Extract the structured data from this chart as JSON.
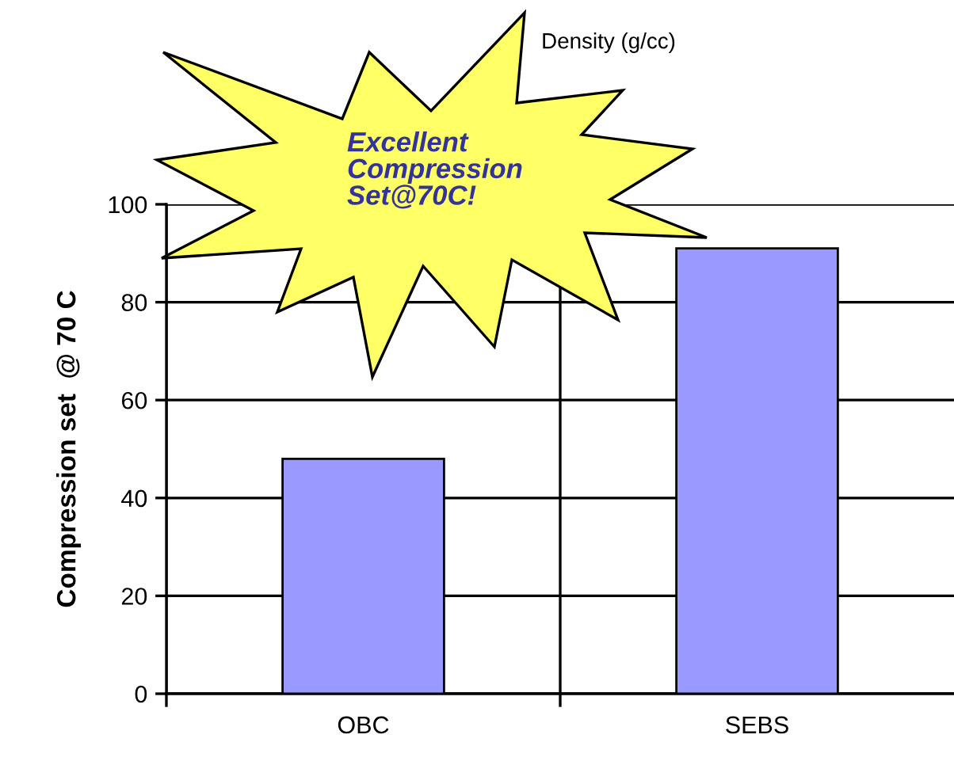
{
  "chart_data": {
    "type": "bar",
    "ylabel": "Compression set  @ 70 C",
    "categories": [
      "OBC",
      "SEBS"
    ],
    "values": [
      48,
      91
    ],
    "color": "#9999ff",
    "ylim": [
      0,
      100
    ],
    "yticks": [
      0,
      20,
      40,
      60,
      80,
      100
    ],
    "grid": true,
    "annotations": [
      "Density (g/cc)",
      "Excellent\nCompression\nSet@70C!"
    ]
  }
}
